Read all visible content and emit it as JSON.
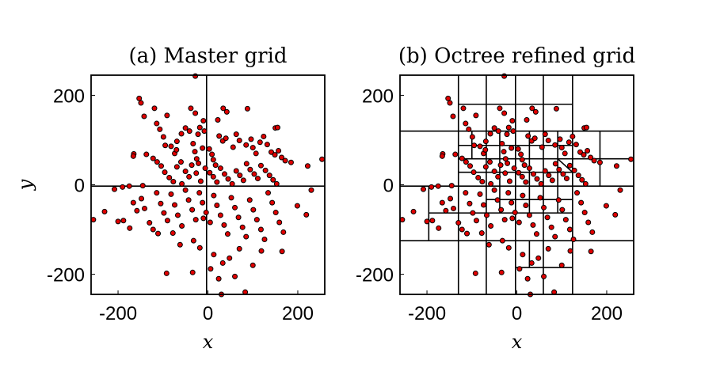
{
  "chart_data": [
    {
      "type": "scatter",
      "title": "(a) Master grid",
      "xlabel": "x",
      "ylabel": "y",
      "xlim": [
        -260,
        260
      ],
      "ylim": [
        -245,
        245
      ],
      "xticks": [
        -200,
        0,
        200
      ],
      "yticks": [
        -200,
        0,
        200
      ],
      "x_tick_labels": [
        "-200",
        "0",
        "200"
      ],
      "y_tick_labels": [
        "-200",
        "0",
        "200"
      ],
      "marker_color": "#e00000",
      "grid_segments": [
        [
          [
            -3,
            -245
          ],
          [
            -3,
            245
          ]
        ],
        [
          [
            -260,
            -3
          ],
          [
            260,
            -3
          ]
        ]
      ]
    },
    {
      "type": "scatter",
      "title": "(b) Octree refined grid",
      "xlabel": "x",
      "ylabel": "",
      "xlim": [
        -260,
        260
      ],
      "ylim": [
        -245,
        245
      ],
      "xticks": [
        -200,
        0,
        200
      ],
      "yticks": [
        -200,
        0,
        200
      ],
      "x_tick_labels": [
        "-200",
        "0",
        "200"
      ],
      "y_tick_labels": [
        "-200",
        "0",
        "200"
      ],
      "marker_color": "#e00000",
      "grid_segments": [
        [
          [
            -3,
            -245
          ],
          [
            -3,
            245
          ]
        ],
        [
          [
            -260,
            -3
          ],
          [
            260,
            -3
          ]
        ],
        [
          [
            -130,
            -245
          ],
          [
            -130,
            245
          ]
        ],
        [
          [
            124,
            -245
          ],
          [
            124,
            245
          ]
        ],
        [
          [
            -68,
            -245
          ],
          [
            -68,
            245
          ]
        ],
        [
          [
            59,
            -245
          ],
          [
            59,
            245
          ]
        ],
        [
          [
            -260,
            120
          ],
          [
            260,
            120
          ]
        ],
        [
          [
            -260,
            -125
          ],
          [
            260,
            -125
          ]
        ],
        [
          [
            -130,
            180
          ],
          [
            124,
            180
          ]
        ],
        [
          [
            -130,
            58
          ],
          [
            124,
            58
          ]
        ],
        [
          [
            -130,
            -63
          ],
          [
            124,
            -63
          ]
        ],
        [
          [
            -3,
            -185
          ],
          [
            124,
            -185
          ]
        ],
        [
          [
            185,
            120
          ],
          [
            185,
            -3
          ]
        ],
        [
          [
            124,
            58
          ],
          [
            260,
            58
          ]
        ],
        [
          [
            -196,
            -3
          ],
          [
            -196,
            -125
          ]
        ],
        [
          [
            -196,
            -63
          ],
          [
            -130,
            -63
          ]
        ],
        [
          [
            -38,
            120
          ],
          [
            -38,
            -63
          ]
        ],
        [
          [
            28,
            120
          ],
          [
            28,
            -63
          ]
        ],
        [
          [
            91,
            120
          ],
          [
            91,
            -63
          ]
        ],
        [
          [
            -100,
            120
          ],
          [
            -100,
            58
          ]
        ],
        [
          [
            -130,
            88
          ],
          [
            124,
            88
          ]
        ],
        [
          [
            -130,
            28
          ],
          [
            124,
            28
          ]
        ],
        [
          [
            -68,
            -33
          ],
          [
            124,
            -33
          ]
        ],
        [
          [
            28,
            -125
          ],
          [
            28,
            -185
          ]
        ],
        [
          [
            91,
            58
          ],
          [
            124,
            28
          ]
        ]
      ]
    }
  ],
  "points": [
    [
      -153,
      193
    ],
    [
      -149,
      183
    ],
    [
      -142,
      153
    ],
    [
      -119,
      171
    ],
    [
      -91,
      155
    ],
    [
      -38,
      171
    ],
    [
      -28,
      160
    ],
    [
      -10,
      143
    ],
    [
      -18,
      128
    ],
    [
      -8,
      120
    ],
    [
      -22,
      113
    ],
    [
      34,
      171
    ],
    [
      42,
      163
    ],
    [
      88,
      170
    ],
    [
      22,
      145
    ],
    [
      150,
      127
    ],
    [
      155,
      128
    ],
    [
      -165,
      69
    ],
    [
      -166,
      64
    ],
    [
      -114,
      137
    ],
    [
      -107,
      124
    ],
    [
      -99,
      107
    ],
    [
      -95,
      88
    ],
    [
      -82,
      86
    ],
    [
      -74,
      70
    ],
    [
      -69,
      97
    ],
    [
      -70,
      78
    ],
    [
      -59,
      114
    ],
    [
      -50,
      127
    ],
    [
      -41,
      120
    ],
    [
      -33,
      92
    ],
    [
      -29,
      74
    ],
    [
      -25,
      58
    ],
    [
      -21,
      48
    ],
    [
      -12,
      82
    ],
    [
      3,
      80
    ],
    [
      9,
      68
    ],
    [
      12,
      56
    ],
    [
      17,
      44
    ],
    [
      25,
      109
    ],
    [
      33,
      98
    ],
    [
      40,
      104
    ],
    [
      56,
      84
    ],
    [
      63,
      113
    ],
    [
      70,
      99
    ],
    [
      85,
      89
    ],
    [
      96,
      102
    ],
    [
      100,
      83
    ],
    [
      107,
      70
    ],
    [
      116,
      95
    ],
    [
      124,
      108
    ],
    [
      132,
      90
    ],
    [
      141,
      73
    ],
    [
      149,
      67
    ],
    [
      157,
      76
    ],
    [
      164,
      61
    ],
    [
      172,
      54
    ],
    [
      185,
      50
    ],
    [
      -137,
      68
    ],
    [
      -122,
      59
    ],
    [
      -113,
      51
    ],
    [
      -104,
      42
    ],
    [
      -96,
      28
    ],
    [
      -86,
      16
    ],
    [
      -77,
      7
    ],
    [
      -69,
      40
    ],
    [
      -60,
      51
    ],
    [
      -50,
      30
    ],
    [
      -42,
      18
    ],
    [
      -36,
      44
    ],
    [
      -26,
      26
    ],
    [
      -16,
      8
    ],
    [
      -6,
      37
    ],
    [
      4,
      27
    ],
    [
      12,
      18
    ],
    [
      20,
      6
    ],
    [
      28,
      37
    ],
    [
      37,
      24
    ],
    [
      45,
      13
    ],
    [
      54,
      2
    ],
    [
      63,
      31
    ],
    [
      71,
      21
    ],
    [
      79,
      10
    ],
    [
      86,
      47
    ],
    [
      94,
      34
    ],
    [
      103,
      24
    ],
    [
      111,
      14
    ],
    [
      118,
      43
    ],
    [
      128,
      32
    ],
    [
      137,
      21
    ],
    [
      145,
      11
    ],
    [
      153,
      2
    ],
    [
      -208,
      -10
    ],
    [
      -190,
      -5
    ],
    [
      -175,
      -3
    ],
    [
      -166,
      -40
    ],
    [
      -158,
      -58
    ],
    [
      -148,
      -31
    ],
    [
      -141,
      -53
    ],
    [
      -130,
      -85
    ],
    [
      -122,
      -100
    ],
    [
      -114,
      -18
    ],
    [
      -105,
      -42
    ],
    [
      -98,
      -63
    ],
    [
      -90,
      -80
    ],
    [
      -82,
      -21
    ],
    [
      -74,
      -45
    ],
    [
      -67,
      -68
    ],
    [
      -58,
      -92
    ],
    [
      -50,
      -12
    ],
    [
      -43,
      -34
    ],
    [
      -35,
      -56
    ],
    [
      -27,
      -78
    ],
    [
      -19,
      -18
    ],
    [
      -12,
      -40
    ],
    [
      -4,
      -62
    ],
    [
      5,
      -84
    ],
    [
      13,
      -24
    ],
    [
      20,
      -46
    ],
    [
      28,
      -68
    ],
    [
      36,
      -90
    ],
    [
      44,
      -110
    ],
    [
      52,
      -29
    ],
    [
      60,
      -51
    ],
    [
      68,
      -73
    ],
    [
      77,
      -95
    ],
    [
      85,
      -116
    ],
    [
      93,
      -34
    ],
    [
      101,
      -56
    ],
    [
      109,
      -78
    ],
    [
      118,
      -100
    ],
    [
      126,
      -122
    ],
    [
      134,
      -18
    ],
    [
      143,
      -40
    ],
    [
      151,
      -62
    ],
    [
      159,
      -84
    ],
    [
      168,
      -106
    ],
    [
      -230,
      -60
    ],
    [
      -200,
      -82
    ],
    [
      -188,
      -80
    ],
    [
      -174,
      -97
    ],
    [
      -111,
      -109
    ],
    [
      -92,
      -198
    ],
    [
      -62,
      -134
    ],
    [
      -34,
      -196
    ],
    [
      -18,
      -141
    ],
    [
      6,
      -188
    ],
    [
      13,
      -156
    ],
    [
      24,
      -210
    ],
    [
      33,
      -175
    ],
    [
      48,
      -164
    ],
    [
      60,
      -205
    ],
    [
      70,
      -143
    ],
    [
      83,
      -240
    ],
    [
      100,
      -180
    ],
    [
      119,
      -148
    ],
    [
      165,
      -149
    ],
    [
      -255,
      -78
    ],
    [
      254,
      57
    ],
    [
      -28,
      243
    ],
    [
      30,
      -245
    ],
    [
      222,
      42
    ],
    [
      219,
      -67
    ],
    [
      230,
      -12
    ],
    [
      199,
      -47
    ],
    [
      -78,
      -108
    ],
    [
      -58,
      2
    ],
    [
      -145,
      -2
    ],
    [
      -10,
      -75
    ],
    [
      -32,
      -125
    ]
  ]
}
